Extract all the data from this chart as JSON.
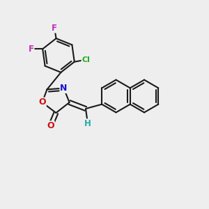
{
  "background_color": "#eeeeee",
  "bond_color": "#1a1a1a",
  "bond_lw": 1.5,
  "fig_size": [
    3.0,
    3.0
  ],
  "dpi": 100,
  "xlim": [
    0.0,
    10.0
  ],
  "ylim": [
    0.0,
    10.0
  ],
  "colors": {
    "C": "#1a1a1a",
    "N": "#1515cc",
    "O": "#cc1111",
    "F": "#bb33bb",
    "Cl": "#22aa22",
    "H": "#22aaaa"
  }
}
